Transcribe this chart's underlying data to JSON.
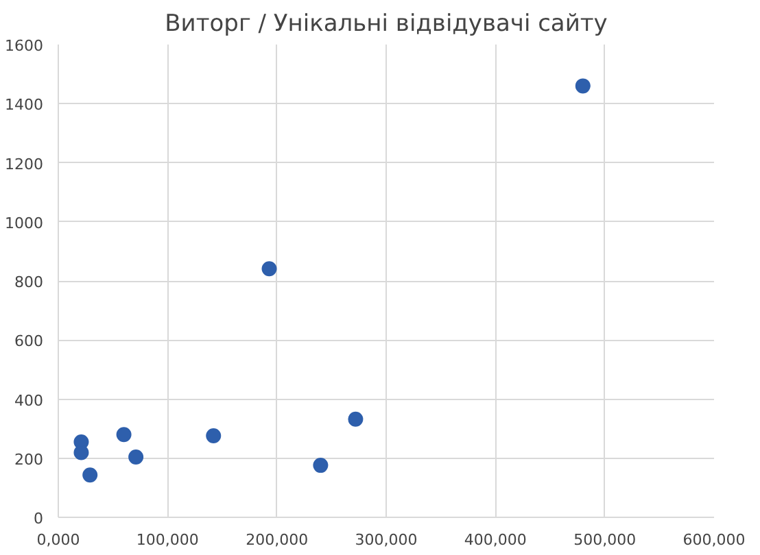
{
  "chart_data": {
    "type": "scatter",
    "title": "Виторг / Унікальні відвідувачі сайту",
    "x": [
      21000,
      21000,
      29000,
      60000,
      71000,
      142000,
      193000,
      240000,
      272000,
      480000
    ],
    "values": [
      255,
      219,
      143,
      280,
      204,
      276,
      841,
      176,
      332,
      1460
    ],
    "color": "#2e5fac",
    "marker": "circle",
    "grid": true,
    "xlim": [
      0,
      600000
    ],
    "ylim": [
      0,
      1600
    ],
    "xticks": [
      {
        "value": 0,
        "label": "0,000"
      },
      {
        "value": 100000,
        "label": "100,000"
      },
      {
        "value": 200000,
        "label": "200,000"
      },
      {
        "value": 300000,
        "label": "300,000"
      },
      {
        "value": 400000,
        "label": "400,000"
      },
      {
        "value": 500000,
        "label": "500,000"
      },
      {
        "value": 600000,
        "label": "600,000"
      }
    ],
    "yticks": [
      0,
      200,
      400,
      600,
      800,
      1000,
      1200,
      1400,
      1600
    ]
  }
}
